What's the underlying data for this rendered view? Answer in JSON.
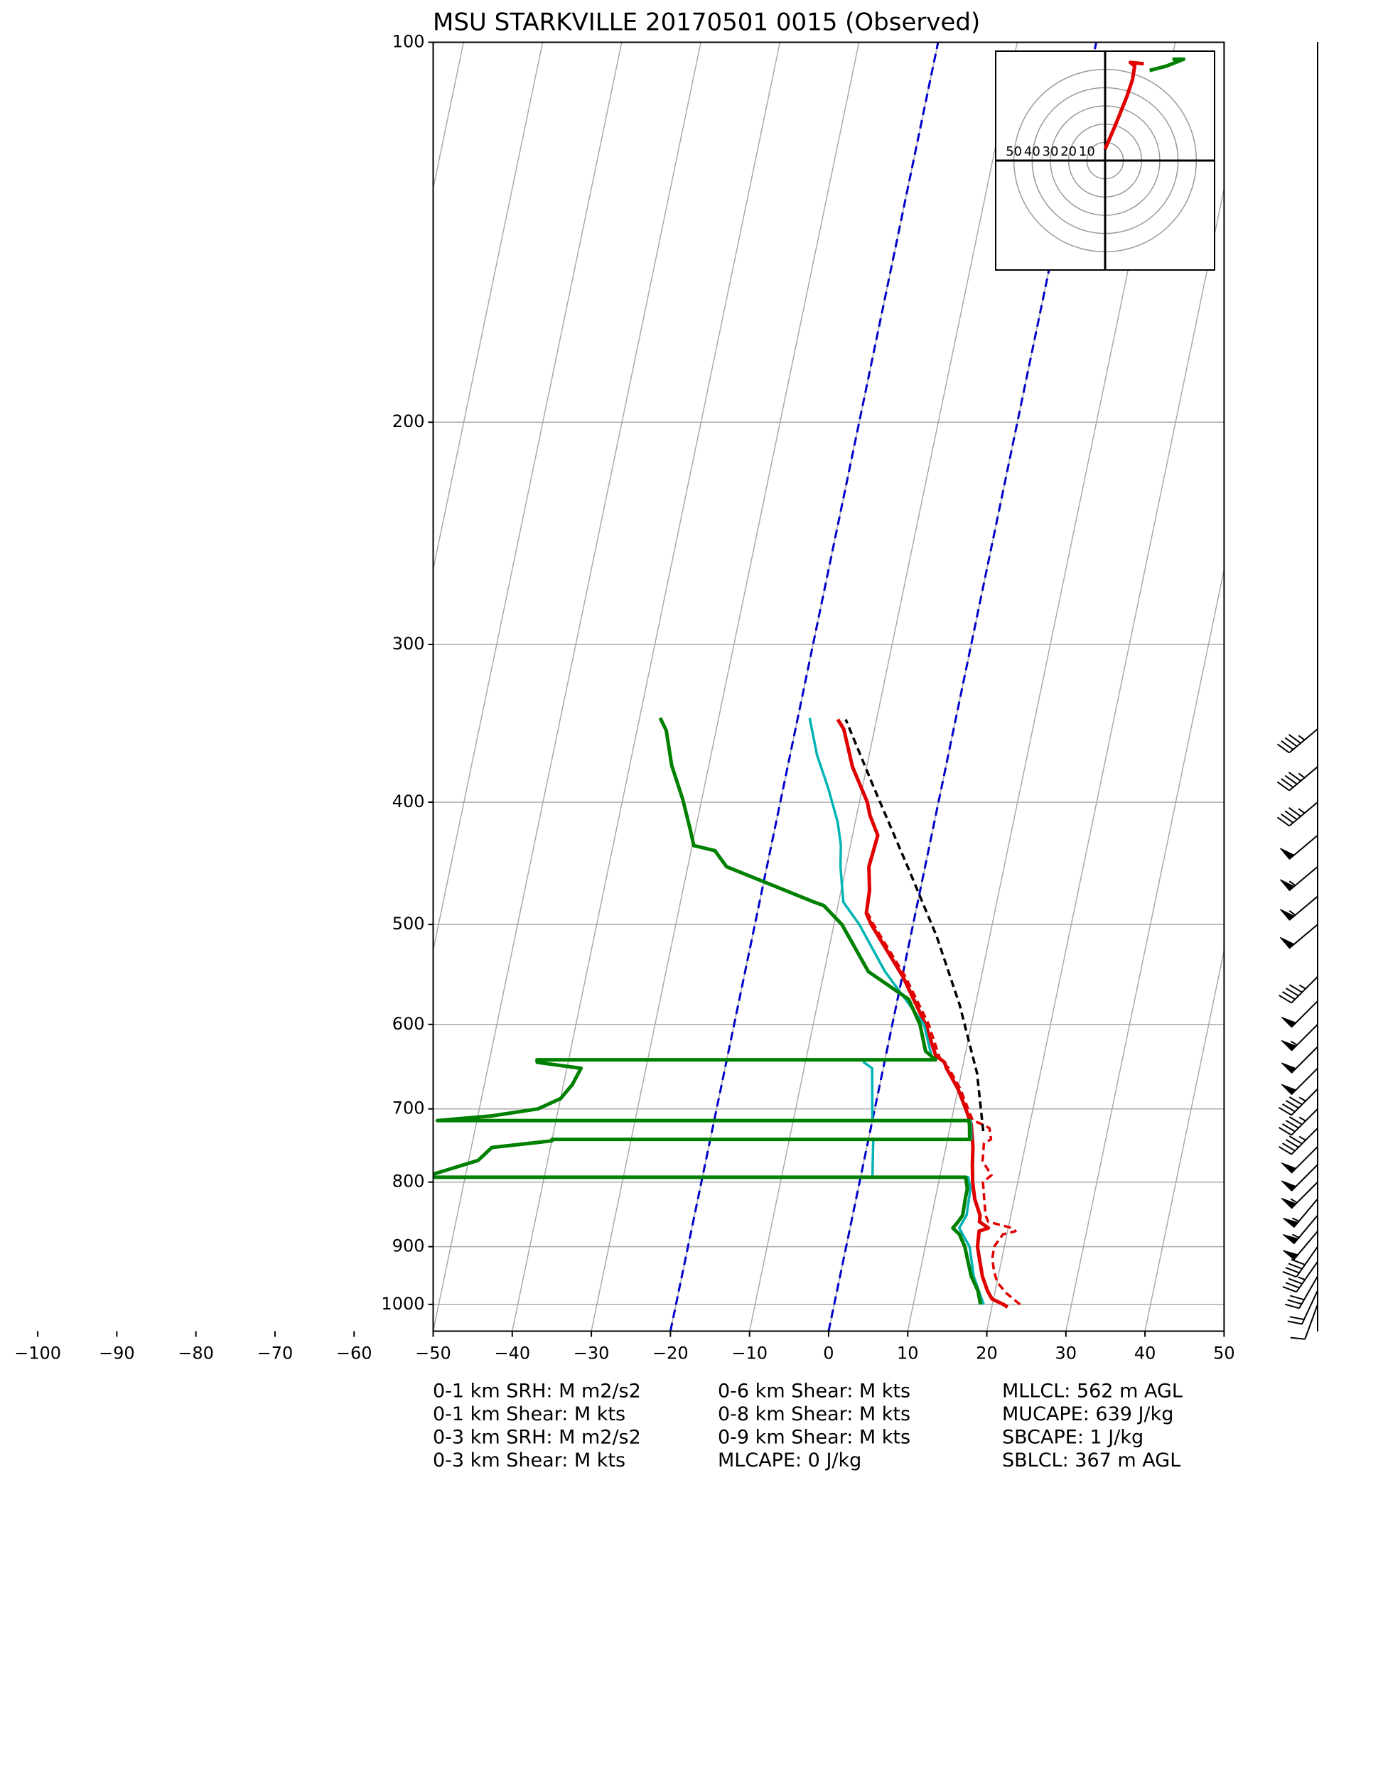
{
  "chart_data": {
    "type": "skewt",
    "title": "MSU STARKVILLE 20170501 0015   (Observed)",
    "xlim": [
      -50,
      50
    ],
    "ylim": [
      1050,
      100
    ],
    "log_y": true,
    "grid": true,
    "skew": 0.2076,
    "xticks": [
      {
        "value": -100,
        "label": "−100"
      },
      {
        "value": -90,
        "label": "−90"
      },
      {
        "value": -80,
        "label": "−80"
      },
      {
        "value": -70,
        "label": "−70"
      },
      {
        "value": -60,
        "label": "−60"
      },
      {
        "value": -50,
        "label": "−50"
      },
      {
        "value": -40,
        "label": "−40"
      },
      {
        "value": -30,
        "label": "−30"
      },
      {
        "value": -20,
        "label": "−20"
      },
      {
        "value": -10,
        "label": "−10"
      },
      0,
      10,
      20,
      30,
      40,
      50
    ],
    "yticks": [
      100,
      200,
      300,
      400,
      500,
      600,
      700,
      800,
      900,
      1000
    ],
    "highlight_isotherms": [
      -20,
      0
    ],
    "highlight_color": "#0000cc",
    "series": [
      {
        "color": "#e00000",
        "width": 5,
        "dashed": false,
        "pressure": [
          1005,
          1000,
          990,
          975,
          950,
          925,
          900,
          875,
          870,
          860,
          850,
          825,
          800,
          775,
          750,
          720,
          700,
          675,
          650,
          643,
          635,
          600,
          550,
          500,
          490,
          470,
          450,
          425,
          410,
          400,
          375,
          350,
          344
        ],
        "values": [
          22.0,
          21.4,
          19.8,
          19.0,
          18.0,
          17.3,
          16.6,
          16.4,
          17.5,
          16.2,
          16.1,
          15.0,
          14.3,
          13.8,
          13.4,
          12.6,
          11.5,
          10.0,
          8.0,
          7.6,
          6.3,
          4.2,
          0.1,
          -5.3,
          -6.2,
          -6.4,
          -7.1,
          -6.8,
          -8.3,
          -9.0,
          -11.8,
          -13.9,
          -14.9
        ]
      },
      {
        "color": "#e00000",
        "width": 3.5,
        "dashed": true,
        "pressure": [
          1000,
          980,
          960,
          940,
          920,
          900,
          880,
          875,
          870,
          860,
          850,
          825,
          800,
          790,
          770,
          745,
          740,
          725,
          720,
          715,
          700,
          675,
          650,
          640,
          600,
          550,
          500,
          490
        ],
        "values": [
          23.5,
          21.5,
          20.0,
          19.3,
          18.8,
          18.7,
          19.5,
          21.0,
          20.5,
          17.3,
          16.8,
          16.2,
          15.6,
          16.5,
          15.0,
          14.7,
          15.5,
          15.0,
          14.0,
          12.7,
          11.8,
          10.3,
          8.3,
          7.0,
          4.6,
          0.4,
          -5.0,
          -6.0
        ]
      },
      {
        "color": "#00b4b4",
        "width": 3.5,
        "dashed": false,
        "pressure": [
          1000,
          950,
          900,
          870,
          850,
          810,
          793,
          793,
          740,
          740,
          721,
          715,
          715,
          650,
          643,
          640,
          640,
          600,
          545,
          500,
          480,
          450,
          433,
          415,
          390,
          367,
          343
        ],
        "values": [
          18.9,
          16.9,
          15.6,
          13.8,
          14.4,
          14.2,
          13.6,
          1.5,
          0.6,
          13.0,
          12.6,
          12.4,
          0.0,
          -1.4,
          -2.6,
          -2.7,
          6.0,
          4.0,
          -2.3,
          -6.8,
          -9.4,
          -10.7,
          -11.2,
          -12.2,
          -14.3,
          -16.6,
          -18.5
        ]
      },
      {
        "color": "#008000",
        "width": 5,
        "dashed": false,
        "pressure": [
          1000,
          975,
          950,
          925,
          900,
          880,
          870,
          860,
          850,
          825,
          810,
          793,
          793,
          788,
          769,
          751,
          742,
          740,
          740,
          721,
          715,
          715,
          709,
          700,
          687,
          670,
          650,
          643,
          640,
          640,
          630,
          600,
          573,
          545,
          500,
          483,
          480,
          450,
          437,
          433,
          420,
          398,
          374,
          351,
          343
        ],
        "values": [
          18.5,
          17.8,
          16.6,
          15.8,
          15.0,
          14.0,
          13.0,
          13.5,
          13.9,
          13.8,
          13.8,
          13.3,
          -55,
          -54,
          -48.8,
          -47.4,
          -40,
          -40,
          12.8,
          12.4,
          12.2,
          -55,
          -48.3,
          -42.6,
          -40,
          -38.9,
          -38.2,
          -43.9,
          -44,
          6.4,
          4.9,
          3.5,
          1.4,
          -4.4,
          -9.0,
          -11.8,
          -13.1,
          -25.1,
          -27.0,
          -29.8,
          -30.7,
          -32.4,
          -34.7,
          -36.3,
          -37.4
        ]
      },
      {
        "color": "#000000",
        "width": 3.5,
        "dashed": true,
        "pressure": [
          729,
          656,
          579,
          511,
          451,
          390,
          344
        ],
        "values": [
          14.3,
          12.0,
          8.0,
          3.3,
          -2.1,
          -8.5,
          -13.9
        ]
      }
    ],
    "wind": {
      "pressure": [
        1000,
        975,
        950,
        925,
        900,
        875,
        850,
        825,
        800,
        775,
        750,
        725,
        700,
        675,
        650,
        625,
        600,
        575,
        550,
        500,
        475,
        450,
        425,
        400,
        375,
        350
      ],
      "speed": [
        10,
        20,
        30,
        35,
        40,
        50,
        55,
        55,
        55,
        50,
        50,
        45,
        45,
        45,
        50,
        50,
        55,
        50,
        45,
        50,
        55,
        55,
        50,
        45,
        45,
        45
      ],
      "direction": [
        200,
        205,
        210,
        215,
        215,
        220,
        220,
        220,
        225,
        225,
        225,
        225,
        225,
        225,
        225,
        225,
        225,
        225,
        225,
        230,
        230,
        230,
        230,
        230,
        230,
        230
      ]
    },
    "hodograph": {
      "xlim": [
        -60,
        60
      ],
      "ylim": [
        -60,
        60
      ],
      "rings": [
        10,
        20,
        30,
        40,
        50
      ],
      "series": [
        {
          "color": "#e00000",
          "u": [
            0,
            5.6,
            11.9,
            15,
            16.2,
            13.8,
            21.2
          ],
          "v": [
            6.3,
            19.4,
            35,
            44.4,
            51.9,
            53.8,
            53.1
          ]
        },
        {
          "color": "#008000",
          "u": [
            24.4,
            33.8,
            43.1,
            36.9
          ],
          "v": [
            49.4,
            51.9,
            55.6,
            55.6
          ]
        }
      ]
    },
    "stats": [
      "0-1 km SRH: M m2/s2",
      "0-1 km Shear: M kts",
      "0-3 km SRH: M m2/s2",
      "0-3 km Shear: M kts",
      "0-6 km Shear: M kts",
      "0-8 km Shear: M kts",
      "0-9 km Shear: M kts",
      "MLCAPE: 0 J/kg",
      "MLLCL: 562 m AGL",
      "MUCAPE: 639 J/kg",
      "SBCAPE: 1 J/kg",
      "SBLCL: 367 m AGL"
    ]
  }
}
